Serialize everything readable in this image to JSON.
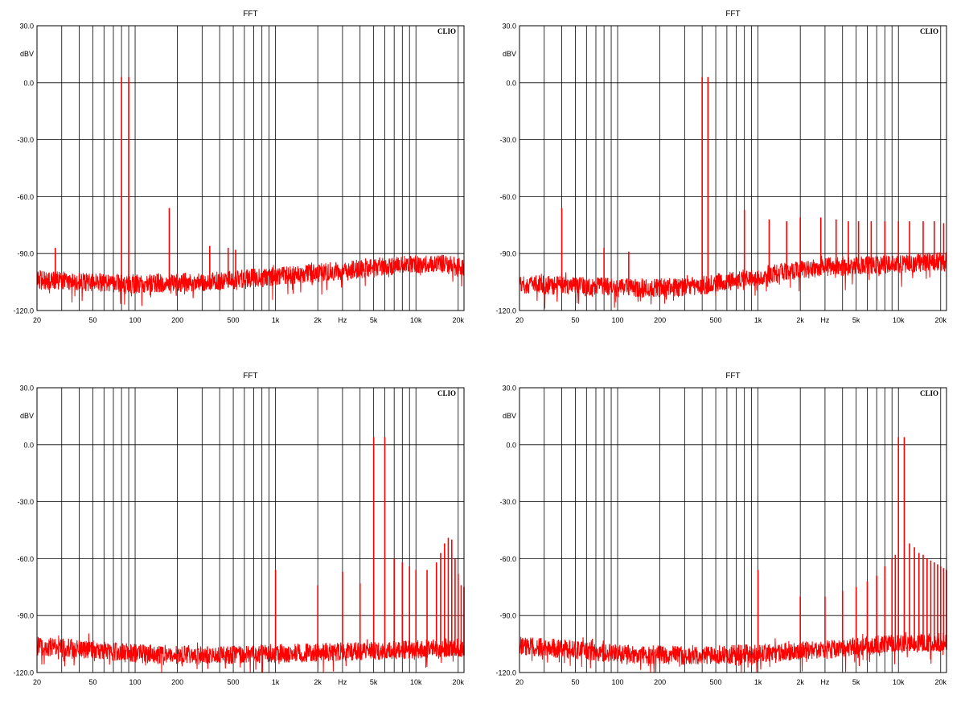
{
  "colors": {
    "trace": "#ff0000",
    "grid": "#000000",
    "background": "#ffffff",
    "text": "#000000"
  },
  "chart_data": [
    {
      "type": "line",
      "title": "FFT",
      "brand": "CLIO",
      "ylabel": "dBV",
      "xlabel": "Hz",
      "x_scale": "log",
      "xlim": [
        20,
        22000
      ],
      "ylim": [
        -120,
        30
      ],
      "grid": true,
      "yticks": [
        "30.0",
        "0.0",
        "-30.0",
        "-60.0",
        "-90.0",
        "-120.0"
      ],
      "xticks": [
        "20",
        "50",
        "100",
        "200",
        "500",
        "1k",
        "2k",
        "5k",
        "10k",
        "20k"
      ],
      "noise_floor": [
        [
          20,
          -104
        ],
        [
          100,
          -106
        ],
        [
          300,
          -105
        ],
        [
          1000,
          -102
        ],
        [
          3000,
          -99
        ],
        [
          8000,
          -96
        ],
        [
          15000,
          -95
        ],
        [
          22000,
          -98
        ]
      ],
      "peaks": [
        [
          80,
          3
        ],
        [
          90,
          3
        ],
        [
          175,
          -66
        ],
        [
          27,
          -87
        ],
        [
          340,
          -86
        ],
        [
          460,
          -87
        ],
        [
          520,
          -88
        ]
      ]
    },
    {
      "type": "line",
      "title": "FFT",
      "brand": "CLIO",
      "ylabel": "dBV",
      "xlabel": "Hz",
      "x_scale": "log",
      "xlim": [
        20,
        22000
      ],
      "ylim": [
        -120,
        30
      ],
      "grid": true,
      "yticks": [
        "30.0",
        "0.0",
        "-30.0",
        "-60.0",
        "-90.0",
        "-120.0"
      ],
      "xticks": [
        "20",
        "50",
        "100",
        "200",
        "500",
        "1k",
        "2k",
        "5k",
        "10k",
        "20k"
      ],
      "noise_floor": [
        [
          20,
          -106
        ],
        [
          100,
          -108
        ],
        [
          300,
          -108
        ],
        [
          700,
          -104
        ],
        [
          1500,
          -100
        ],
        [
          3000,
          -97
        ],
        [
          8000,
          -96
        ],
        [
          22000,
          -94
        ]
      ],
      "peaks": [
        [
          400,
          3
        ],
        [
          440,
          3
        ],
        [
          40,
          -66
        ],
        [
          80,
          -87
        ],
        [
          120,
          -89
        ],
        [
          800,
          -67
        ],
        [
          1200,
          -72
        ],
        [
          1600,
          -73
        ],
        [
          2000,
          -71
        ],
        [
          2800,
          -71
        ],
        [
          3600,
          -72
        ],
        [
          4400,
          -73
        ],
        [
          5200,
          -73
        ],
        [
          6400,
          -73
        ],
        [
          8000,
          -73
        ],
        [
          10000,
          -73
        ],
        [
          12000,
          -73
        ],
        [
          15000,
          -73
        ],
        [
          18000,
          -73
        ],
        [
          21000,
          -74
        ]
      ]
    },
    {
      "type": "line",
      "title": "FFT",
      "brand": "CLIO",
      "ylabel": "dBV",
      "xlabel": "Hz",
      "x_scale": "log",
      "xlim": [
        20,
        22000
      ],
      "ylim": [
        -120,
        30
      ],
      "grid": true,
      "yticks": [
        "30.0",
        "0.0",
        "-30.0",
        "-60.0",
        "-90.0",
        "-120.0"
      ],
      "xticks": [
        "20",
        "50",
        "100",
        "200",
        "500",
        "1k",
        "2k",
        "5k",
        "10k",
        "20k"
      ],
      "noise_floor": [
        [
          20,
          -106
        ],
        [
          50,
          -108
        ],
        [
          100,
          -110
        ],
        [
          300,
          -111
        ],
        [
          1000,
          -110
        ],
        [
          3000,
          -109
        ],
        [
          8000,
          -108
        ],
        [
          22000,
          -107
        ]
      ],
      "peaks": [
        [
          5000,
          4
        ],
        [
          6000,
          4
        ],
        [
          1000,
          -66
        ],
        [
          2000,
          -74
        ],
        [
          3000,
          -67
        ],
        [
          4000,
          -73
        ],
        [
          7000,
          -60
        ],
        [
          8000,
          -62
        ],
        [
          9000,
          -64
        ],
        [
          10000,
          -66
        ],
        [
          12000,
          -66
        ],
        [
          14000,
          -62
        ],
        [
          15000,
          -57
        ],
        [
          16000,
          -52
        ],
        [
          17000,
          -49
        ],
        [
          18000,
          -50
        ],
        [
          19000,
          -60
        ],
        [
          20000,
          -68
        ],
        [
          21000,
          -74
        ],
        [
          22000,
          -75
        ]
      ]
    },
    {
      "type": "line",
      "title": "FFT",
      "brand": "CLIO",
      "ylabel": "dBV",
      "xlabel": "Hz",
      "x_scale": "log",
      "xlim": [
        20,
        22000
      ],
      "ylim": [
        -120,
        30
      ],
      "grid": true,
      "yticks": [
        "30.0",
        "0.0",
        "-30.0",
        "-60.0",
        "-90.0",
        "-120.0"
      ],
      "xticks": [
        "20",
        "50",
        "100",
        "200",
        "500",
        "1k",
        "2k",
        "5k",
        "10k",
        "20k"
      ],
      "noise_floor": [
        [
          20,
          -106
        ],
        [
          50,
          -108
        ],
        [
          100,
          -110
        ],
        [
          300,
          -111
        ],
        [
          1000,
          -110
        ],
        [
          3000,
          -108
        ],
        [
          8000,
          -105
        ],
        [
          22000,
          -104
        ]
      ],
      "peaks": [
        [
          10000,
          4
        ],
        [
          11000,
          4
        ],
        [
          1000,
          -66
        ],
        [
          2000,
          -80
        ],
        [
          3000,
          -80
        ],
        [
          4000,
          -77
        ],
        [
          5000,
          -75
        ],
        [
          6000,
          -72
        ],
        [
          7000,
          -69
        ],
        [
          8000,
          -64
        ],
        [
          9000,
          -60
        ],
        [
          9500,
          -58
        ],
        [
          12000,
          -52
        ],
        [
          13000,
          -54
        ],
        [
          14000,
          -57
        ],
        [
          15000,
          -58
        ],
        [
          16000,
          -60
        ],
        [
          17000,
          -61
        ],
        [
          18000,
          -62
        ],
        [
          19000,
          -63
        ],
        [
          20000,
          -64
        ],
        [
          21000,
          -65
        ],
        [
          22000,
          -66
        ]
      ]
    }
  ]
}
